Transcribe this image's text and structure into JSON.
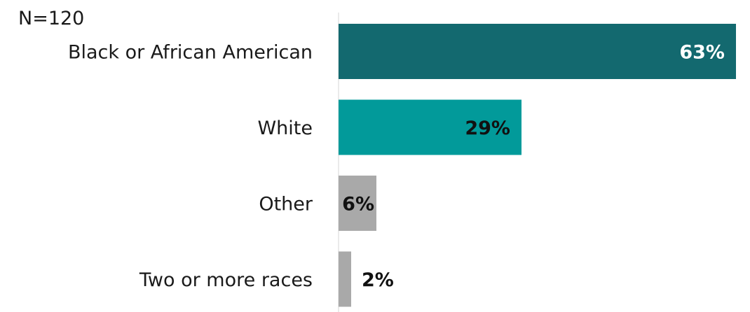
{
  "chart_data": {
    "type": "bar",
    "orientation": "horizontal",
    "note": "N=120",
    "categories": [
      "Black or African American",
      "White",
      "Other",
      "Two or more races"
    ],
    "values": [
      63,
      29,
      6,
      2
    ],
    "value_labels": [
      "63%",
      "29%",
      "6%",
      "2%"
    ],
    "xlim": [
      0,
      63
    ],
    "grid": false,
    "legend": "none",
    "colors": [
      "#13696f",
      "#029a9a",
      "#a9a9a9",
      "#a9a9a9"
    ],
    "value_label_colors": [
      "#ffffff",
      "#111111",
      "#111111",
      "#111111"
    ]
  }
}
